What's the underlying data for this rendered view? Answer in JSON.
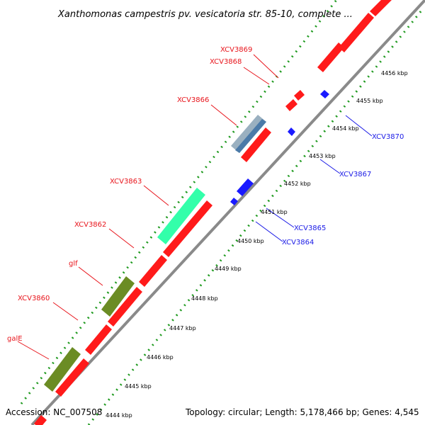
{
  "title": "Xanthomonas campestris pv. vesicatoria str. 85-10, complete ...",
  "footer": {
    "accession": "Accession: NC_007508",
    "summary": "Topology: circular; Length: 5,178,466 bp; Genes: 4,545"
  },
  "colors": {
    "forward_label": "#e8141b",
    "reverse_label": "#1a1ae6",
    "cds": "#ff1a1a",
    "reverse_cds": "#1a1aff",
    "rrna": "#33ffaa",
    "trna": "#6b8c24",
    "grey_feature": "#9ab0c0",
    "backbone": "#8c8c8c",
    "gc_dots": "#1f9a1f"
  },
  "ticks": [
    {
      "label": "4444 kbp"
    },
    {
      "label": "4445 kbp"
    },
    {
      "label": "4446 kbp"
    },
    {
      "label": "4447 kbp"
    },
    {
      "label": "4448 kbp"
    },
    {
      "label": "4449 kbp"
    },
    {
      "label": "4450 kbp"
    },
    {
      "label": "4451 kbp"
    },
    {
      "label": "4452 kbp"
    },
    {
      "label": "4453 kbp"
    },
    {
      "label": "4454 kbp"
    },
    {
      "label": "4455 kbp"
    },
    {
      "label": "4456 kbp"
    }
  ],
  "forward_labels": [
    "XCV3869",
    "XCV3868",
    "XCV3866",
    "XCV3863",
    "XCV3862",
    "glf",
    "XCV3860",
    "galE"
  ],
  "reverse_labels": [
    "XCV3870",
    "XCV3867",
    "XCV3865",
    "XCV3864"
  ]
}
